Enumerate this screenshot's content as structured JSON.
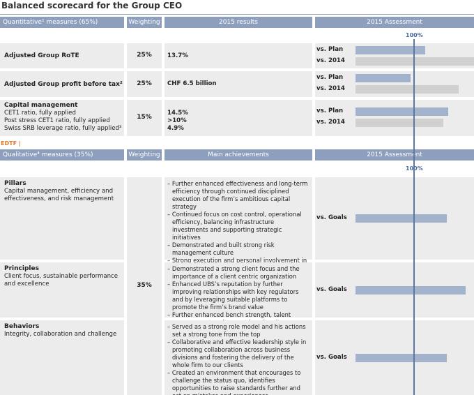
{
  "title": "Balanced scorecard for the Group CEO",
  "quantitative": {
    "headers": [
      "Quantitative¹ measures (65%)",
      "Weighting",
      "2015 results",
      "2015 Assessment"
    ],
    "scale": {
      "value": 100,
      "label": "100%"
    },
    "rows": [
      {
        "measure": "Adjusted Group RoTE",
        "details": [],
        "weighting": "25%",
        "results": [
          "13.7%"
        ],
        "assessments": [
          {
            "label": "vs. Plan",
            "value": 119,
            "color": "#a3b3cc"
          },
          {
            "label": "vs. 2014",
            "value": 202,
            "color": "#d0d0d0"
          }
        ]
      },
      {
        "measure": "Adjusted Group profit before tax²",
        "details": [],
        "weighting": "25%",
        "results": [
          "CHF 6.5 billion"
        ],
        "assessments": [
          {
            "label": "vs. Plan",
            "value": 94,
            "color": "#a3b3cc"
          },
          {
            "label": "vs. 2014",
            "value": 176,
            "color": "#d0d0d0"
          }
        ]
      },
      {
        "measure": "Capital management",
        "details": [
          "CET1 ratio, fully applied",
          "Post stress CET1 ratio, fully applied",
          "Swiss SRB leverage ratio, fully applied³"
        ],
        "weighting": "15%",
        "results": [
          "14.5%",
          ">10%",
          "4.9%"
        ],
        "assessments": [
          {
            "label": "vs. Plan",
            "value": 158,
            "color": "#a3b3cc"
          },
          {
            "label": "vs. 2014",
            "value": 150,
            "color": "#d0d0d0"
          }
        ]
      }
    ]
  },
  "edtf": "EDTF |",
  "qualitative": {
    "headers": [
      "Qualitative⁴ measures (35%)",
      "Weighting",
      "Main achievements",
      "2015 Assessment"
    ],
    "scale": {
      "value": 100,
      "label": "100%"
    },
    "weighting": "35%",
    "rows": [
      {
        "measure": "Pillars",
        "details": "Capital management, efficiency and effectiveness, and risk management",
        "achievements": [
          "– Further enhanced effectiveness and long-term efficiency through continued disciplined execution of the firm’s ambitious capital strategy",
          "– Continued focus on cost control, operational efficiency, balancing infrastructure investments and supporting strategic initiatives",
          "– Demonstrated and built strong risk management culture",
          "– Strong execution and personal involvement in regulatory compliance matters"
        ],
        "assessment": {
          "label": "vs. Goals",
          "value": 156,
          "color": "#a3b3cc"
        }
      },
      {
        "measure": "Principles",
        "details": "Client focus, sustainable performance and excellence",
        "achievements": [
          "– Demonstrated a strong client focus and the importance of a client centric organization",
          "– Enhanced UBS’s reputation by further improving relationships with key regulators and by leveraging suitable platforms to promote the firm’s brand value",
          "– Further enhanced bench strength, talent management and succession planning"
        ],
        "assessment": {
          "label": "vs. Goals",
          "value": 188,
          "color": "#a3b3cc"
        }
      },
      {
        "measure": "Behaviors",
        "details": "Integrity, collaboration and challenge",
        "achievements": [
          "– Served as a strong role model and his actions set a strong tone from the top",
          "– Collaborative and effective leadership style in promoting collaboration across business divisions and fostering the delivery of the whole firm to our clients",
          "– Created an environment that encourages to challenge the status quo, identifies opportunities to raise standards further and act on mistakes and experiences"
        ],
        "assessment": {
          "label": "vs. Goals",
          "value": 156,
          "color": "#a3b3cc"
        }
      }
    ]
  }
}
